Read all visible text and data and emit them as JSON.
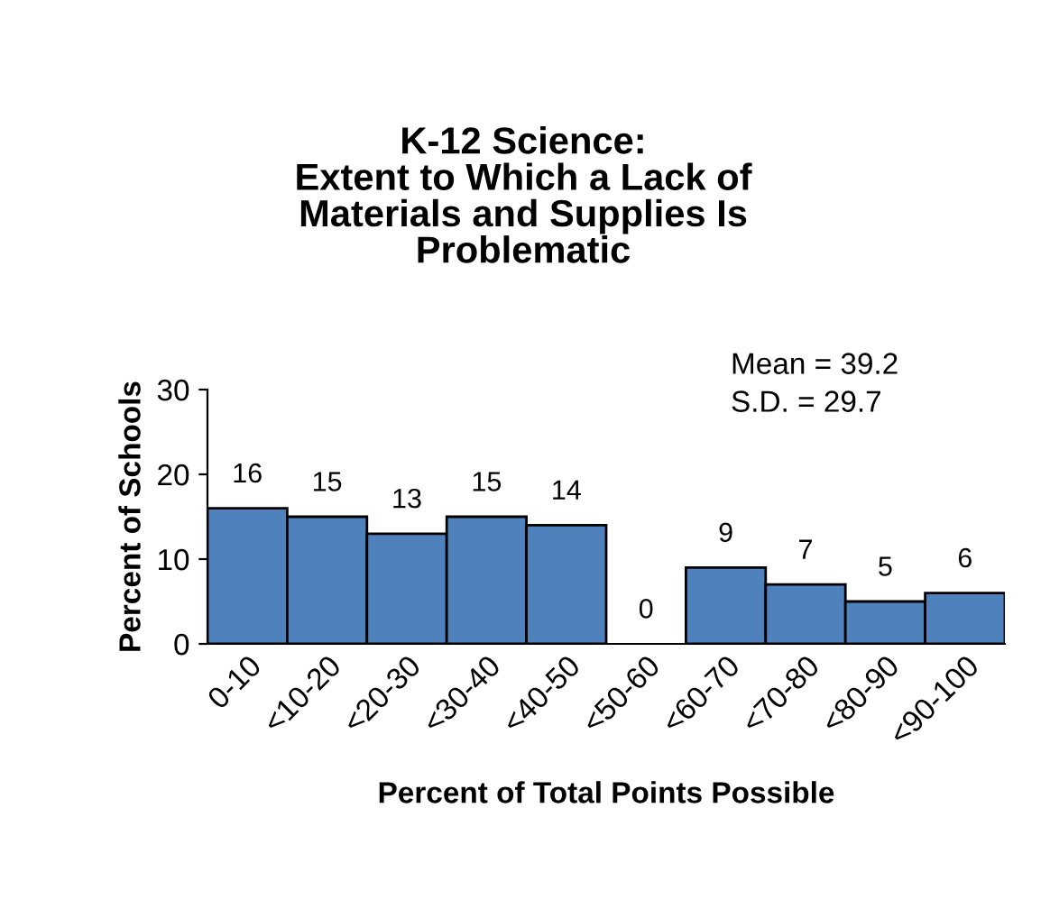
{
  "chart_data": {
    "type": "bar",
    "title": "K-12 Science:\nExtent to Which a Lack of\nMaterials and Supplies Is\nProblematic",
    "xlabel": "Percent of Total Points Possible",
    "ylabel": "Percent of Schools",
    "categories": [
      "0-10",
      "<10-20",
      "<20-30",
      "<30-40",
      "<40-50",
      "<50-60",
      "<60-70",
      "<70-80",
      "<80-90",
      "<90-100"
    ],
    "values": [
      16,
      15,
      13,
      15,
      14,
      0,
      9,
      7,
      5,
      6
    ],
    "color": "#4f81bd",
    "ylim": [
      0,
      30
    ],
    "yticks": [
      0,
      10,
      20,
      30
    ],
    "grid": false,
    "data_labels": true,
    "annotations": [
      "Mean = 39.2",
      "S.D. = 29.7"
    ]
  }
}
